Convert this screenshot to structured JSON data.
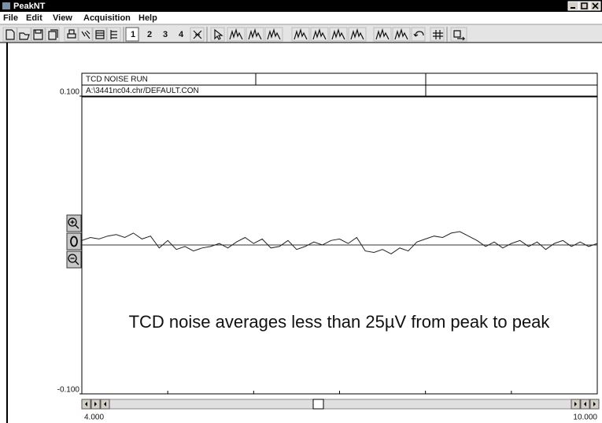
{
  "window": {
    "title": "PeakNT",
    "menu": [
      "File",
      "Edit",
      "View",
      "Acquisition",
      "Help"
    ],
    "pages": [
      "1",
      "2",
      "3",
      "4"
    ]
  },
  "chart_data": {
    "type": "line",
    "header_rows": [
      "TCD NOISE RUN",
      "A:\\3441nc04.chr/DEFAULT.CON"
    ],
    "annotation": "TCD noise averages less than 25µV from peak to peak",
    "x": [
      4.0,
      4.1,
      4.2,
      4.3,
      4.4,
      4.5,
      4.6,
      4.7,
      4.8,
      4.9,
      5.0,
      5.1,
      5.2,
      5.3,
      5.4,
      5.5,
      5.6,
      5.7,
      5.8,
      5.9,
      6.0,
      6.1,
      6.2,
      6.3,
      6.4,
      6.5,
      6.6,
      6.7,
      6.8,
      6.9,
      7.0,
      7.1,
      7.2,
      7.3,
      7.4,
      7.5,
      7.6,
      7.7,
      7.8,
      7.9,
      8.0,
      8.1,
      8.2,
      8.3,
      8.4,
      8.5,
      8.6,
      8.7,
      8.8,
      8.9,
      9.0,
      9.1,
      9.2,
      9.3,
      9.4,
      9.5,
      9.6,
      9.7,
      9.8,
      9.9,
      10.0
    ],
    "values": [
      0.003,
      0.005,
      0.004,
      0.006,
      0.007,
      0.005,
      0.008,
      0.004,
      0.006,
      -0.002,
      0.003,
      -0.003,
      -0.001,
      -0.004,
      -0.002,
      -0.001,
      0.001,
      -0.002,
      0.002,
      0.005,
      0.001,
      0.004,
      -0.002,
      -0.001,
      0.003,
      -0.003,
      -0.001,
      0.002,
      0.0,
      0.003,
      0.004,
      0.001,
      0.005,
      -0.004,
      -0.005,
      -0.003,
      -0.006,
      -0.002,
      -0.004,
      0.002,
      0.004,
      0.006,
      0.005,
      0.008,
      0.009,
      0.006,
      0.003,
      -0.001,
      0.002,
      -0.002,
      0.001,
      0.003,
      -0.001,
      0.002,
      -0.003,
      0.001,
      0.003,
      -0.001,
      0.002,
      -0.001,
      0.001
    ],
    "color": "#222222",
    "baseline": 0,
    "xlim": [
      4.0,
      10.0
    ],
    "ylim": [
      -0.1,
      0.1
    ],
    "xticks": [
      {
        "value": 4.0,
        "label": "4.000"
      },
      {
        "value": 10.0,
        "label": "10.000"
      }
    ],
    "xminorticks": [
      5,
      6,
      7,
      8,
      9
    ],
    "yticks": [
      {
        "value": -0.1,
        "label": "-0.100"
      },
      {
        "value": 0.1,
        "label": "0.100"
      }
    ],
    "grid": false
  }
}
